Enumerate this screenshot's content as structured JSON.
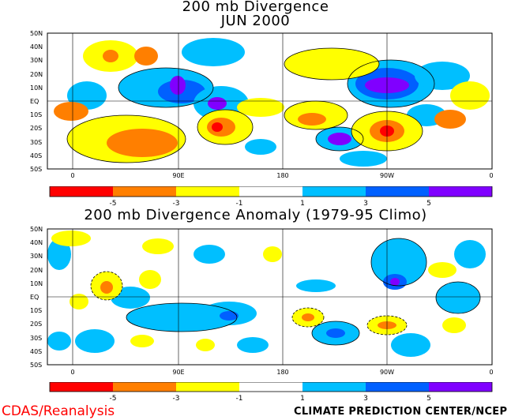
{
  "top_panel": {
    "title_line1": "200 mb Divergence",
    "title_line2": "JUN 2000"
  },
  "bottom_panel": {
    "title": "200 mb Divergence Anomaly (1979-95 Climo)"
  },
  "map_axes": {
    "lat_labels": [
      "50N",
      "40N",
      "30N",
      "20N",
      "10N",
      "EQ",
      "10S",
      "20S",
      "30S",
      "40S",
      "50S"
    ],
    "lon_labels": [
      "0",
      "90E",
      "180",
      "90W",
      "0"
    ]
  },
  "colorbar": {
    "labels": [
      "-5",
      "-3",
      "-1",
      "1",
      "3",
      "5"
    ],
    "colors": [
      "#ff0000",
      "#ff7f00",
      "#ffff00",
      "#ffffff",
      "#00bfff",
      "#0060ff",
      "#8000ff"
    ]
  },
  "footer": {
    "left": "CDAS/Reanalysis",
    "right": "CLIMATE PREDICTION CENTER/NCEP"
  }
}
